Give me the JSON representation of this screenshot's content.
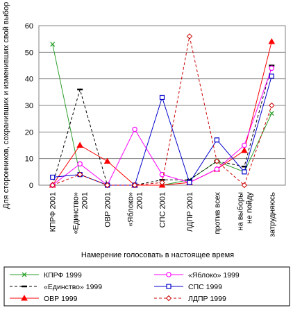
{
  "chart_data": {
    "type": "line",
    "title": "",
    "xlabel": "Намерение голосовать в настоящее время",
    "ylabel": "Для сторонников, сохранивших и изменивших свой выбор",
    "ylim": [
      0,
      60
    ],
    "yticks": [
      0,
      10,
      20,
      30,
      40,
      50,
      60
    ],
    "grid": true,
    "legend_position": "bottom",
    "categories": [
      [
        "КПРФ 2001"
      ],
      [
        "«Единство»",
        "2001"
      ],
      [
        "ОВР 2001"
      ],
      [
        "«Яблоко»",
        "2001"
      ],
      [
        "СПС 2001"
      ],
      [
        "ЛДПР 2001"
      ],
      [
        "против всех"
      ],
      [
        "на выборы",
        "не пойду"
      ],
      [
        "затрудняюсь"
      ]
    ],
    "series": [
      {
        "name": "КПРФ 1999",
        "color": "#2ca02c",
        "marker": "x",
        "dash": "solid",
        "values": [
          53,
          4,
          0,
          0,
          0,
          2,
          9,
          5,
          27
        ]
      },
      {
        "name": "«Единство» 1999",
        "color": "#000000",
        "marker": "dash",
        "dash": "dashed",
        "values": [
          0,
          36,
          0,
          0,
          2,
          2,
          9,
          7,
          45
        ]
      },
      {
        "name": "ОВР 1999",
        "color": "#ff0000",
        "marker": "triangle",
        "dash": "solid",
        "values": [
          0,
          15,
          9,
          0,
          0,
          1,
          6,
          13,
          54
        ]
      },
      {
        "name": "«Яблоко» 1999",
        "color": "#ff00ff",
        "marker": "circle",
        "dash": "solid",
        "values": [
          0,
          8,
          0,
          21,
          4,
          1,
          6,
          15,
          44
        ]
      },
      {
        "name": "СПС 1999",
        "color": "#0000cc",
        "marker": "square",
        "dash": "solid",
        "values": [
          3,
          4,
          0,
          0,
          33,
          1,
          17,
          5,
          41
        ]
      },
      {
        "name": "ЛДПР 1999",
        "color": "#cc0000",
        "marker": "diamond",
        "dash": "dashed",
        "values": [
          0,
          4,
          0,
          0,
          1,
          56,
          9,
          0,
          30
        ]
      }
    ]
  }
}
